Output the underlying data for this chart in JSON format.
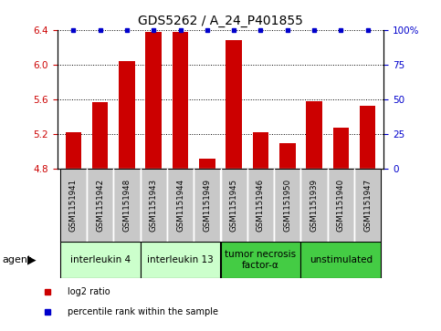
{
  "title": "GDS5262 / A_24_P401855",
  "samples": [
    "GSM1151941",
    "GSM1151942",
    "GSM1151948",
    "GSM1151943",
    "GSM1151944",
    "GSM1151949",
    "GSM1151945",
    "GSM1151946",
    "GSM1151950",
    "GSM1151939",
    "GSM1151940",
    "GSM1151947"
  ],
  "log2_values": [
    5.22,
    5.57,
    6.04,
    6.38,
    6.38,
    4.92,
    6.28,
    5.22,
    5.1,
    5.58,
    5.27,
    5.53
  ],
  "percentile_values": [
    100,
    100,
    100,
    100,
    100,
    100,
    100,
    100,
    100,
    100,
    100,
    100
  ],
  "bar_color": "#cc0000",
  "percentile_color": "#0000cc",
  "ylim_left": [
    4.8,
    6.4
  ],
  "ylim_right": [
    0,
    100
  ],
  "yticks_left": [
    4.8,
    5.2,
    5.6,
    6.0,
    6.4
  ],
  "yticks_right": [
    0,
    25,
    50,
    75,
    100
  ],
  "groups": [
    {
      "label": "interleukin 4",
      "start": 0,
      "end": 3,
      "color": "#ccffcc"
    },
    {
      "label": "interleukin 13",
      "start": 3,
      "end": 6,
      "color": "#ccffcc"
    },
    {
      "label": "tumor necrosis\nfactor-α",
      "start": 6,
      "end": 9,
      "color": "#44cc44"
    },
    {
      "label": "unstimulated",
      "start": 9,
      "end": 12,
      "color": "#44cc44"
    }
  ],
  "agent_label": "agent",
  "legend_items": [
    {
      "label": "log2 ratio",
      "color": "#cc0000",
      "marker": "s"
    },
    {
      "label": "percentile rank within the sample",
      "color": "#0000cc",
      "marker": "s"
    }
  ],
  "sample_box_color": "#c8c8c8",
  "background_color": "#ffffff",
  "title_fontsize": 10,
  "tick_fontsize": 7.5,
  "sample_fontsize": 6.2,
  "group_fontsize": 7.5,
  "legend_fontsize": 7
}
